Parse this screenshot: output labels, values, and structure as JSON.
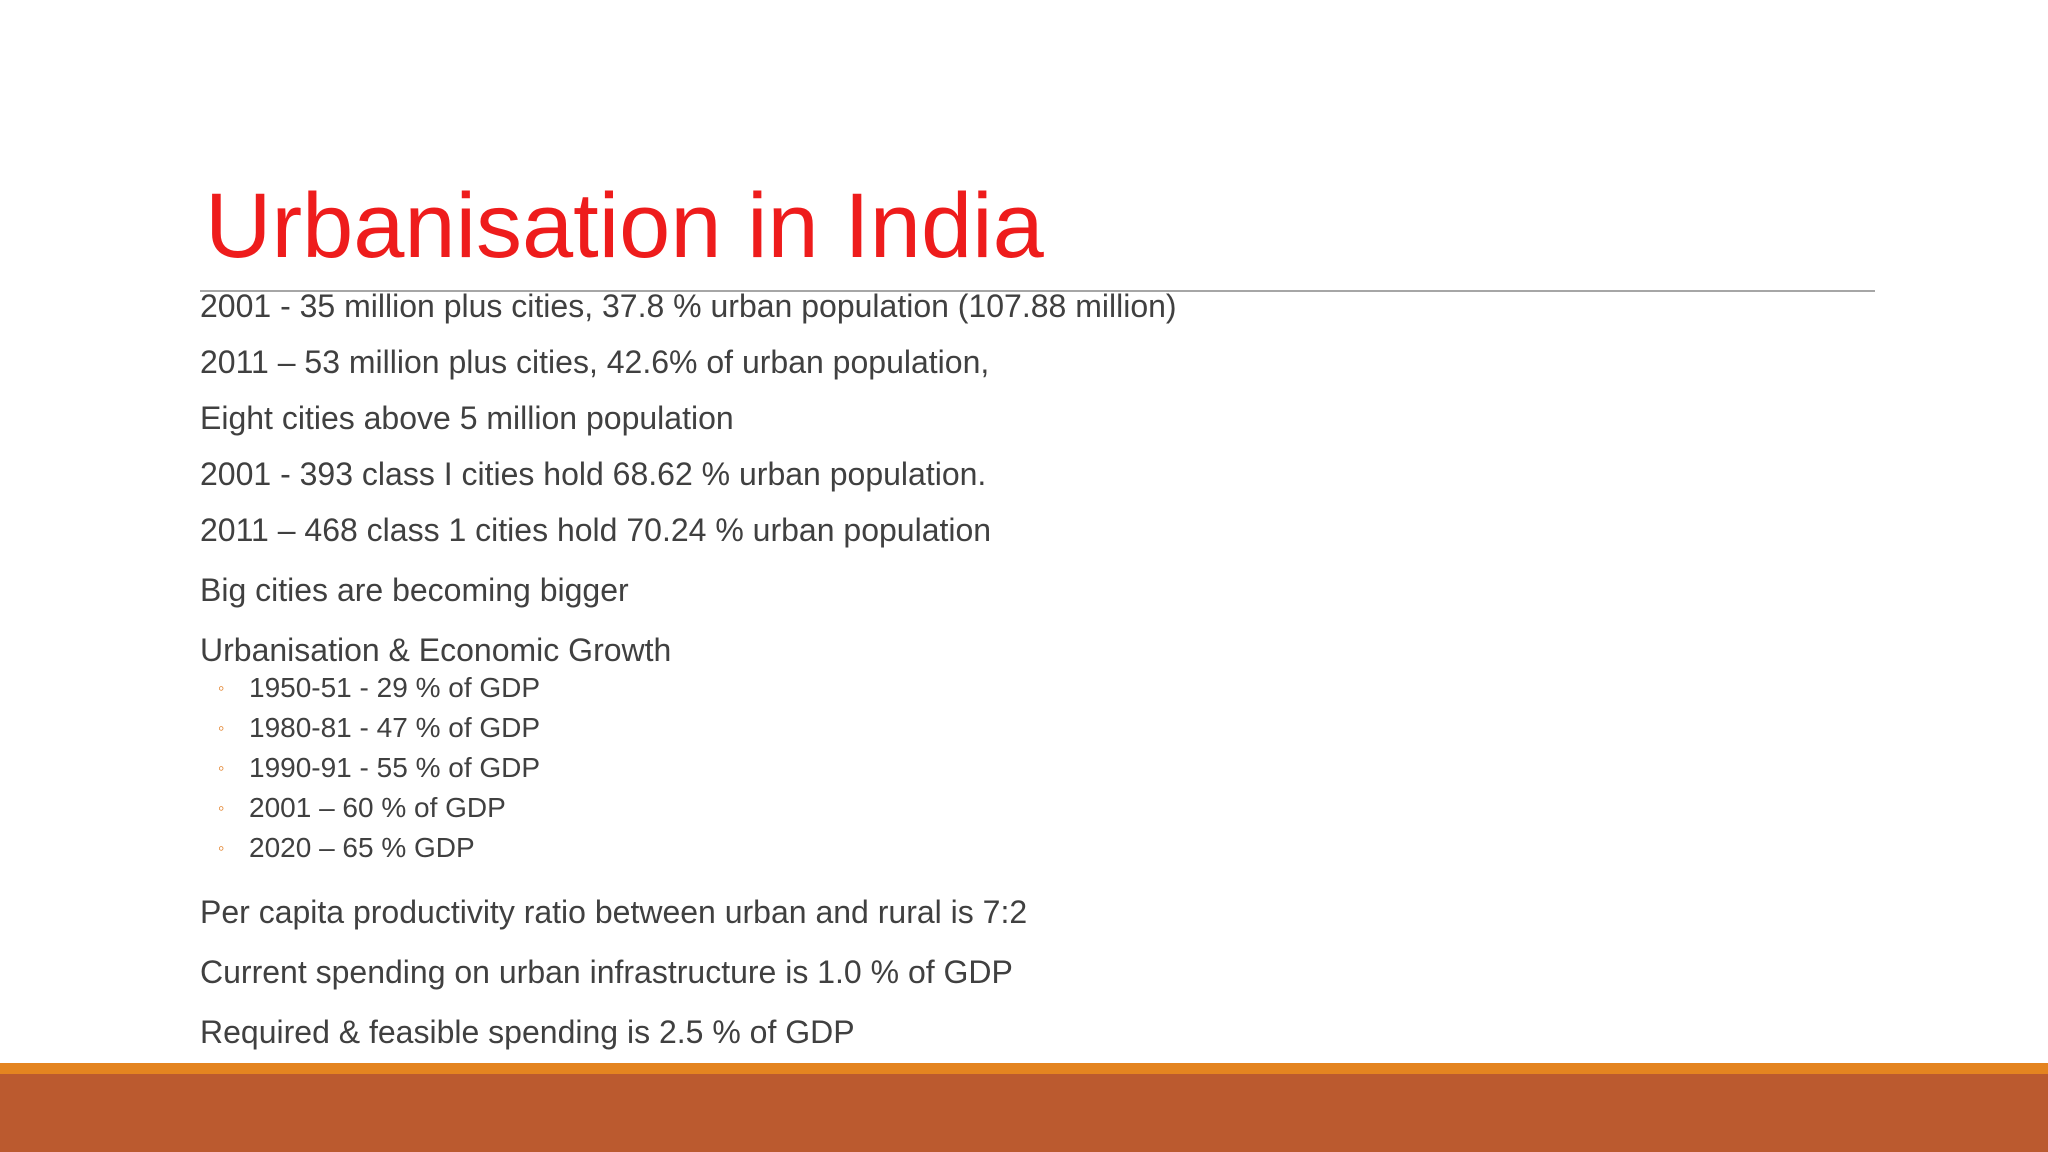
{
  "slide": {
    "title": "Urbanisation in India",
    "accent_color": "#ee1c1c",
    "bullet_color": "#e07b20",
    "footer_colors": [
      "#e48420",
      "#bb5a2f"
    ],
    "lines_top": [
      "2001 - 35 million plus cities, 37.8 % urban population (107.88 million)",
      "2011 – 53 million plus cities, 42.6% of urban population,",
      "Eight cities above 5 million population",
      "2001 - 393 class I cities hold 68.62 % urban population.",
      "2011 – 468 class 1 cities hold 70.24 % urban population",
      "Big cities are becoming bigger",
      "Urbanisation & Economic Growth"
    ],
    "sub_bullet_symbol": "◦",
    "sub_items": [
      "1950-51 - 29 % of GDP",
      "1980-81 - 47 % of GDP",
      "1990-91 - 55 % of GDP",
      "2001 – 60 % of GDP",
      "2020 – 65 % GDP"
    ],
    "lines_bottom": [
      "Per capita productivity ratio between urban and rural is 7:2",
      "Current spending on urban infrastructure is 1.0 % of GDP",
      "Required & feasible spending is 2.5 % of GDP"
    ]
  }
}
